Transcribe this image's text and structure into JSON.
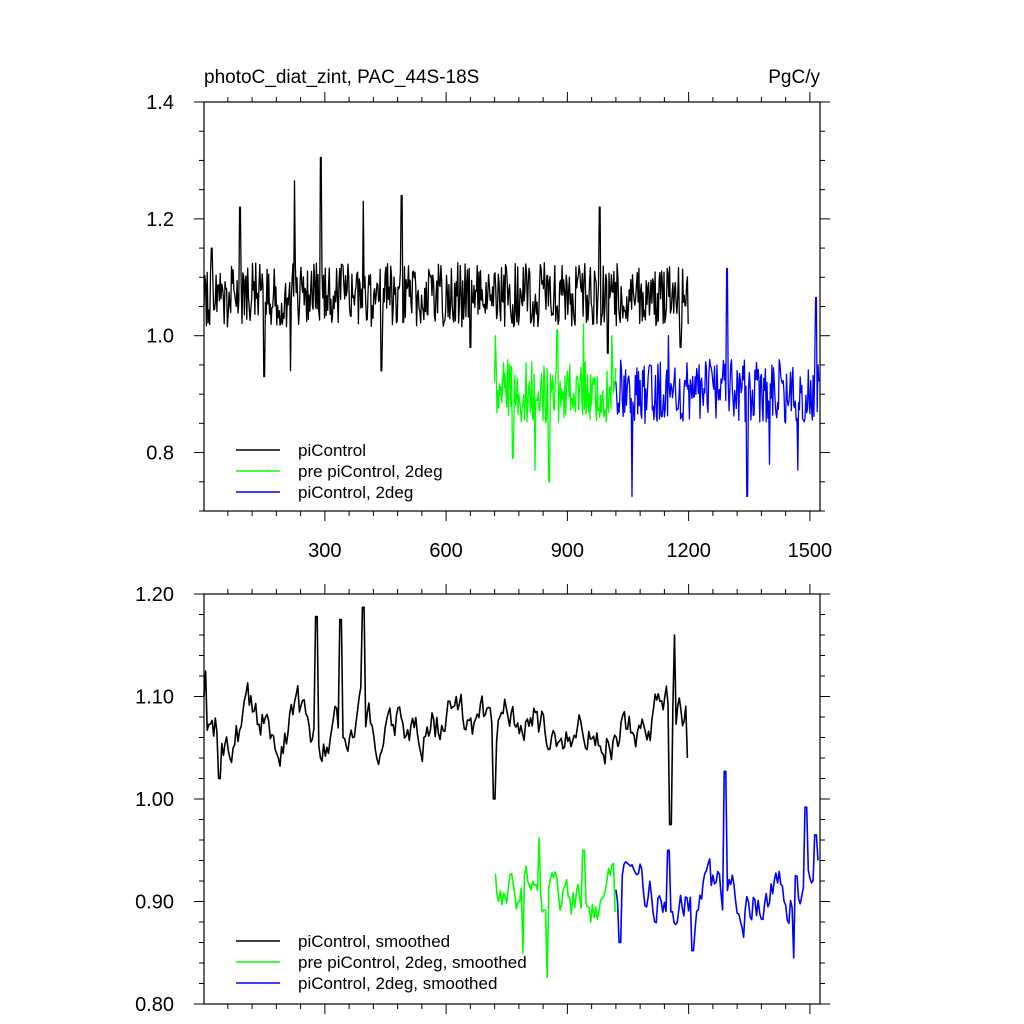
{
  "header": {
    "title": "photoC_diat_zint, PAC_44S-18S",
    "units": "PgC/y"
  },
  "colors": {
    "piControl": "#000000",
    "pre_piControl_2deg": "#00ff00",
    "piControl_2deg": "#0000ff"
  },
  "chart_data": [
    {
      "type": "line",
      "title": "photoC_diat_zint, PAC_44S-18S",
      "units": "PgC/y",
      "xlim": [
        1,
        1525
      ],
      "ylim": [
        0.7,
        1.4
      ],
      "x_ticks": [
        300,
        600,
        900,
        1200,
        1500
      ],
      "x_tick_labels": [
        "300",
        "600",
        "900",
        "1200",
        "1500"
      ],
      "y_ticks": [
        0.8,
        1.0,
        1.2,
        1.4
      ],
      "y_tick_labels": [
        "0.8",
        "1.0",
        "1.2",
        "1.4"
      ],
      "legend_position": "bottom-left",
      "series": [
        {
          "name": "piControl",
          "color": "#000000",
          "x_range": [
            1,
            1200
          ],
          "mean": 1.07,
          "step": 2,
          "anchors": [
            [
              1,
              1.05
            ],
            [
              20,
              1.15
            ],
            [
              90,
              1.22
            ],
            [
              150,
              0.93
            ],
            [
              215,
              0.94
            ],
            [
              225,
              1.265
            ],
            [
              290,
              1.305
            ],
            [
              395,
              1.23
            ],
            [
              440,
              0.94
            ],
            [
              490,
              1.24
            ],
            [
              660,
              0.98
            ],
            [
              980,
              1.22
            ],
            [
              1000,
              0.97
            ],
            [
              1180,
              0.98
            ],
            [
              1199,
              1.02
            ]
          ]
        },
        {
          "name": "pre piControl, 2deg",
          "color": "#00ff00",
          "x_range": [
            720,
            1020
          ],
          "mean": 0.905,
          "step": 2,
          "anchors": [
            [
              722,
              1.0
            ],
            [
              765,
              0.79
            ],
            [
              820,
              0.77
            ],
            [
              855,
              0.75
            ],
            [
              875,
              1.01
            ],
            [
              940,
              1.02
            ],
            [
              1010,
              1.0
            ]
          ]
        },
        {
          "name": "piControl, 2deg",
          "color": "#0000ff",
          "x_range": [
            1020,
            1522
          ],
          "mean": 0.905,
          "step": 2,
          "anchors": [
            [
              1060,
              0.725
            ],
            [
              1150,
              1.0
            ],
            [
              1295,
              1.115
            ],
            [
              1345,
              0.725
            ],
            [
              1400,
              0.78
            ],
            [
              1470,
              0.77
            ],
            [
              1515,
              1.065
            ],
            [
              1520,
              0.95
            ]
          ]
        }
      ]
    },
    {
      "type": "line",
      "xlim": [
        1,
        1525
      ],
      "ylim": [
        0.8,
        1.2
      ],
      "x_ticks": [
        300,
        600,
        900,
        1200,
        1500
      ],
      "y_ticks": [
        0.8,
        0.9,
        1.0,
        1.1,
        1.2
      ],
      "y_tick_labels": [
        "0.80",
        "0.90",
        "1.00",
        "1.10",
        "1.20"
      ],
      "legend_position": "bottom-left",
      "series": [
        {
          "name": "piControl, smoothed",
          "color": "#000000",
          "x_range": [
            1,
            1200
          ],
          "mean": 1.075,
          "step": 4,
          "anchors": [
            [
              1,
              1.1
            ],
            [
              5,
              1.125
            ],
            [
              40,
              1.02
            ],
            [
              280,
              1.178
            ],
            [
              340,
              1.175
            ],
            [
              395,
              1.187
            ],
            [
              720,
              1.0
            ],
            [
              1155,
              0.975
            ],
            [
              1165,
              1.16
            ],
            [
              1200,
              1.04
            ]
          ]
        },
        {
          "name": "pre piControl, 2deg, smoothed",
          "color": "#00ff00",
          "x_range": [
            722,
            1020
          ],
          "mean": 0.905,
          "step": 4,
          "anchors": [
            [
              722,
              0.927
            ],
            [
              790,
              0.85
            ],
            [
              830,
              0.962
            ],
            [
              850,
              0.826
            ],
            [
              940,
              0.95
            ],
            [
              1020,
              0.89
            ]
          ]
        },
        {
          "name": "piControl, 2deg, smoothed",
          "color": "#0000ff",
          "x_range": [
            1020,
            1522
          ],
          "mean": 0.905,
          "step": 4,
          "anchors": [
            [
              1030,
              0.86
            ],
            [
              1150,
              0.95
            ],
            [
              1210,
              0.852
            ],
            [
              1290,
              1.027
            ],
            [
              1460,
              0.845
            ],
            [
              1490,
              0.992
            ],
            [
              1515,
              0.965
            ],
            [
              1520,
              0.94
            ]
          ]
        }
      ]
    }
  ],
  "legend_top": [
    {
      "label": "piControl",
      "color": "#000000"
    },
    {
      "label": "pre piControl, 2deg",
      "color": "#00ff00"
    },
    {
      "label": "piControl, 2deg",
      "color": "#0000ff"
    }
  ],
  "legend_bottom": [
    {
      "label": "piControl, smoothed",
      "color": "#000000"
    },
    {
      "label": "pre piControl, 2deg, smoothed",
      "color": "#00ff00"
    },
    {
      "label": "piControl, 2deg, smoothed",
      "color": "#0000ff"
    }
  ]
}
